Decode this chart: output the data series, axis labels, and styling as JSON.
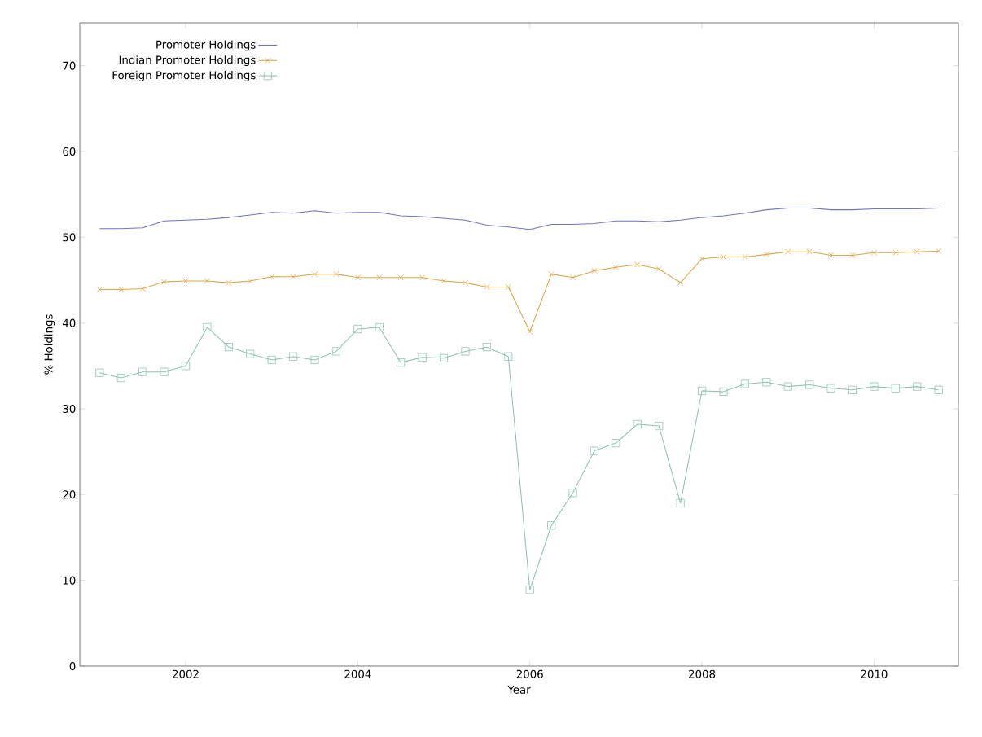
{
  "chart_data": {
    "type": "line",
    "xlabel": "Year",
    "ylabel": "% Holdings",
    "x": [
      2001,
      2001.25,
      2001.5,
      2001.75,
      2002,
      2002.25,
      2002.5,
      2002.75,
      2003,
      2003.25,
      2003.5,
      2003.75,
      2004,
      2004.25,
      2004.5,
      2004.75,
      2005,
      2005.25,
      2005.5,
      2005.75,
      2006,
      2006.25,
      2006.5,
      2006.75,
      2007,
      2007.25,
      2007.5,
      2007.75,
      2008,
      2008.25,
      2008.5,
      2008.75,
      2009,
      2009.25,
      2009.5,
      2009.75,
      2010,
      2010.25,
      2010.5,
      2010.75
    ],
    "series": [
      {
        "name": "Promoter Holdings",
        "color": "#7474c0",
        "marker": "none",
        "values": [
          51.0,
          51.0,
          51.1,
          51.9,
          52.0,
          52.1,
          52.3,
          52.6,
          52.9,
          52.8,
          53.1,
          52.8,
          52.9,
          52.9,
          52.5,
          52.4,
          52.2,
          52.0,
          51.4,
          51.2,
          50.9,
          51.5,
          51.5,
          51.6,
          51.9,
          51.9,
          51.8,
          52.0,
          52.3,
          52.5,
          52.8,
          53.2,
          53.4,
          53.4,
          53.2,
          53.2,
          53.3,
          53.3,
          53.3,
          53.4
        ]
      },
      {
        "name": "Indian Promoter Holdings",
        "color": "#d9a84a",
        "marker": "cross",
        "values": [
          43.9,
          43.9,
          44.0,
          44.8,
          44.9,
          44.9,
          44.7,
          44.9,
          45.4,
          45.4,
          45.7,
          45.7,
          45.3,
          45.3,
          45.3,
          45.3,
          44.9,
          44.7,
          44.2,
          44.2,
          39.0,
          45.7,
          45.3,
          46.1,
          46.5,
          46.8,
          46.3,
          44.7,
          47.5,
          47.7,
          47.7,
          48.0,
          48.3,
          48.3,
          47.9,
          47.9,
          48.2,
          48.2,
          48.3,
          48.4
        ]
      },
      {
        "name": "Foreign Promoter Holdings",
        "color": "#8fc4b0",
        "marker": "square",
        "values": [
          34.2,
          33.6,
          34.3,
          34.3,
          35.0,
          39.5,
          37.2,
          36.4,
          35.7,
          36.1,
          35.7,
          36.7,
          39.3,
          39.5,
          35.4,
          36.0,
          35.9,
          36.7,
          37.2,
          36.1,
          8.9,
          16.4,
          20.2,
          25.1,
          26.0,
          28.2,
          28.0,
          19.0,
          32.1,
          32.0,
          32.9,
          33.1,
          32.6,
          32.8,
          32.4,
          32.2,
          32.6,
          32.4,
          32.6,
          32.2
        ]
      }
    ],
    "xlim": [
      2000.77,
      2010.98
    ],
    "ylim": [
      0,
      75
    ],
    "xticks": [
      2002,
      2004,
      2006,
      2008,
      2010
    ],
    "yticks": [
      0,
      10,
      20,
      30,
      40,
      50,
      60,
      70
    ],
    "grid": false,
    "legend": "top left",
    "line_style": "solid"
  }
}
